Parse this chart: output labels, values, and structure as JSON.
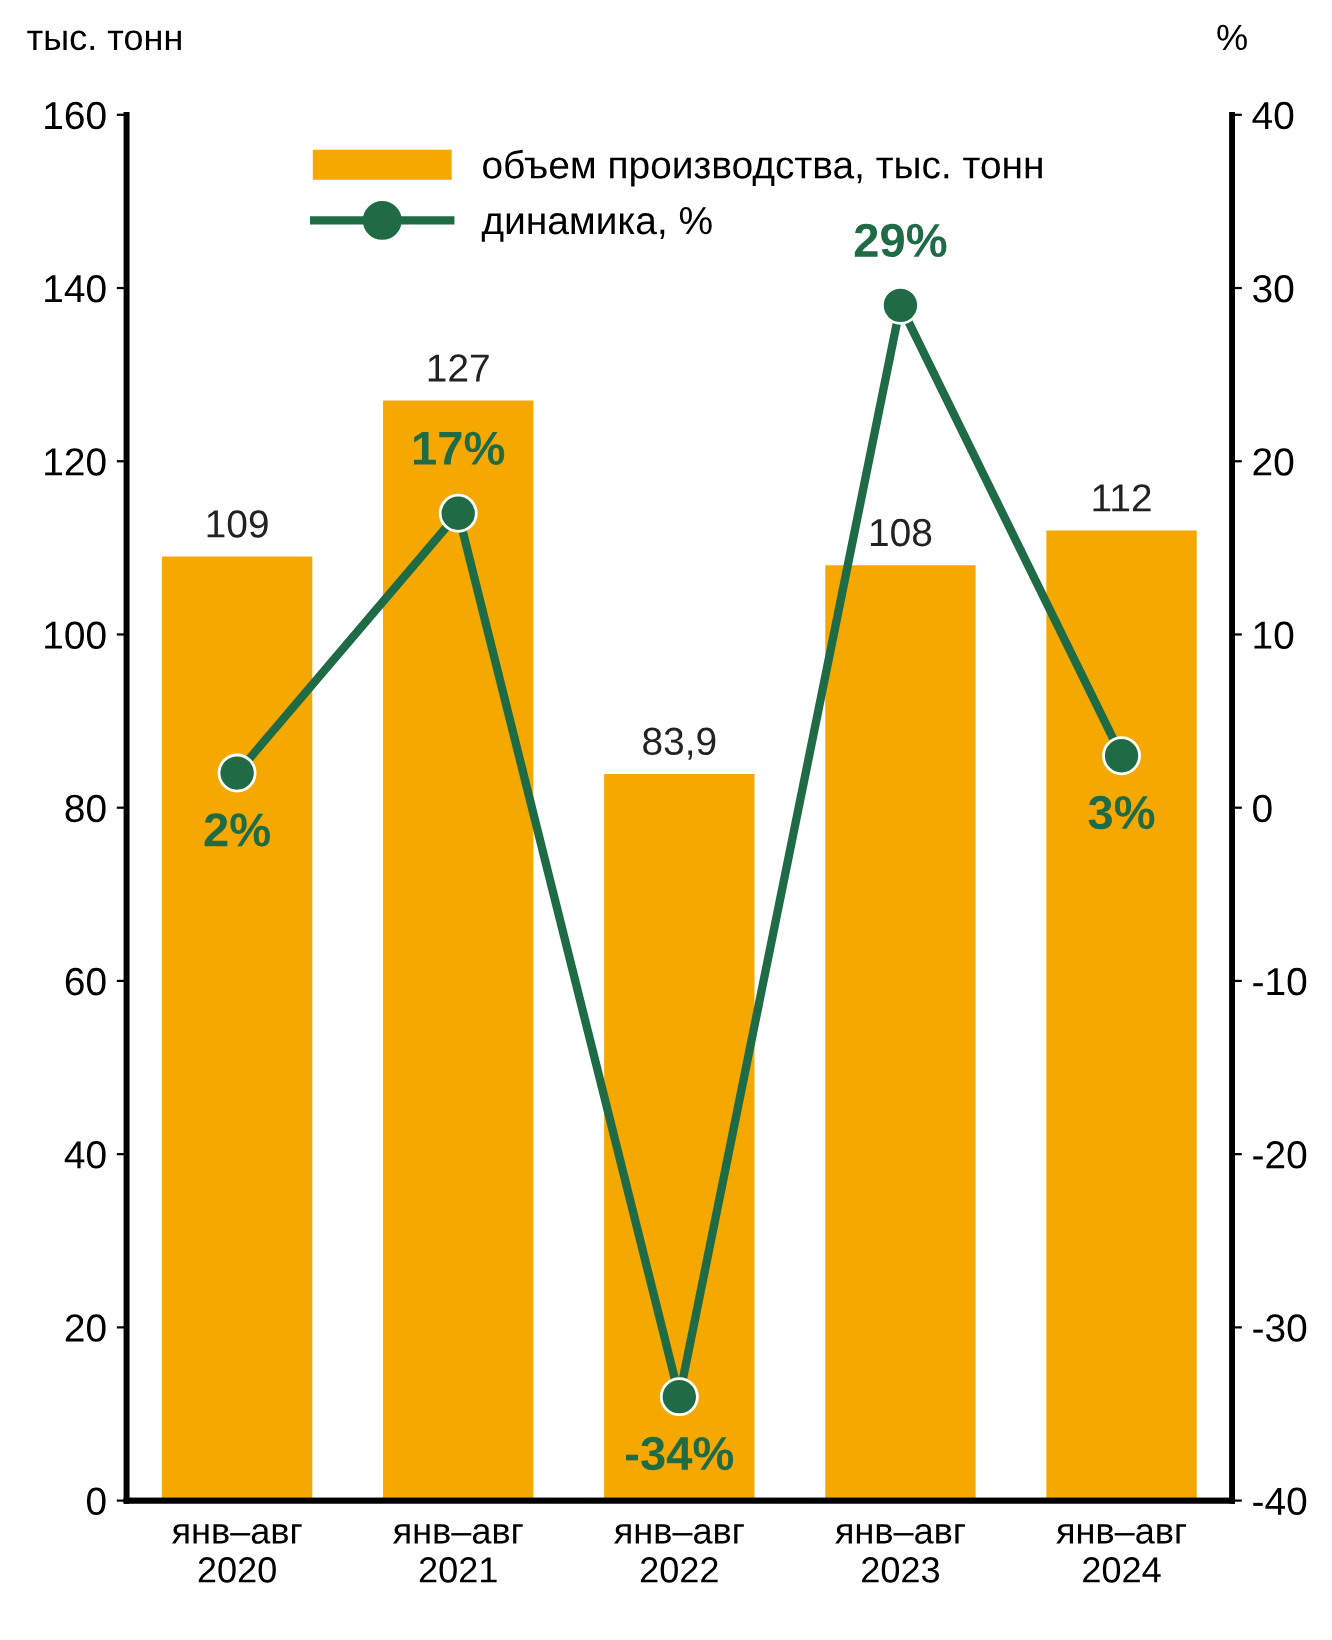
{
  "chart_data": {
    "type": "bar",
    "ylabel": "тыс. тонн",
    "y2label": "%",
    "categories": [
      "янв–авг\n2020",
      "янв–авг\n2021",
      "янв–авг\n2022",
      "янв–авг\n2023",
      "янв–авг\n2024"
    ],
    "series": [
      {
        "name": "объем производства, тыс. тонн",
        "color": "#f5a800",
        "values": [
          109,
          127,
          83.9,
          108,
          112
        ],
        "value_labels": [
          "109",
          "127",
          "83,9",
          "108",
          "112"
        ]
      },
      {
        "name": "динамика, %",
        "type": "line",
        "axis": "y2",
        "color": "#1e6b45",
        "marker": "circle",
        "values": [
          2,
          17,
          -34,
          29,
          3
        ],
        "value_labels": [
          "2%",
          "17%",
          "-34%",
          "29%",
          "3%"
        ]
      }
    ],
    "ylim": [
      0,
      160
    ],
    "yticks": [
      0,
      20,
      40,
      60,
      80,
      100,
      120,
      140,
      160
    ],
    "y2lim": [
      -40,
      40
    ],
    "y2ticks": [
      -40,
      -30,
      -20,
      -10,
      0,
      10,
      20,
      30,
      40
    ],
    "grid": false,
    "legend": "top"
  }
}
